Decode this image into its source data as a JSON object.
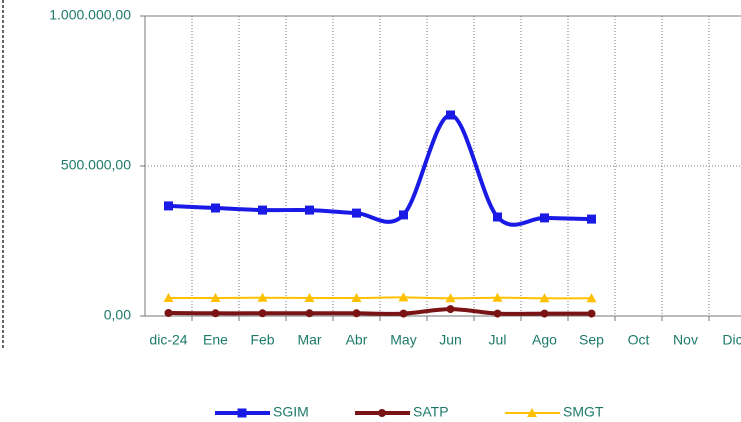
{
  "chart_data": {
    "type": "line",
    "categories": [
      "dic-24",
      "Ene",
      "Feb",
      "Mar",
      "Abr",
      "May",
      "Jun",
      "Jul",
      "Ago",
      "Sep",
      "Oct",
      "Nov",
      "Dic"
    ],
    "series": [
      {
        "name": "SGIM",
        "color": "#1a1ae6",
        "marker": "square",
        "values": [
          367000,
          360000,
          353000,
          353000,
          343000,
          337000,
          670000,
          330000,
          327000,
          323000,
          null,
          null,
          null
        ]
      },
      {
        "name": "SATP",
        "color": "#7a1414",
        "marker": "circle",
        "values": [
          10000,
          9000,
          9000,
          9000,
          9000,
          8000,
          23000,
          8000,
          8000,
          8000,
          null,
          null,
          null
        ]
      },
      {
        "name": "SMGT",
        "color": "#ffc000",
        "marker": "triangle",
        "values": [
          60000,
          60000,
          61000,
          60000,
          60000,
          62000,
          59000,
          61000,
          59000,
          59000,
          null,
          null,
          null
        ]
      }
    ],
    "ylim": [
      0,
      1000000
    ],
    "yticks": [
      {
        "value": 0,
        "label": "0,00"
      },
      {
        "value": 500000,
        "label": "500.000,00"
      },
      {
        "value": 1000000,
        "label": "1.000.000,00"
      }
    ],
    "grid": true,
    "smooth": true,
    "legend": "bottom"
  }
}
